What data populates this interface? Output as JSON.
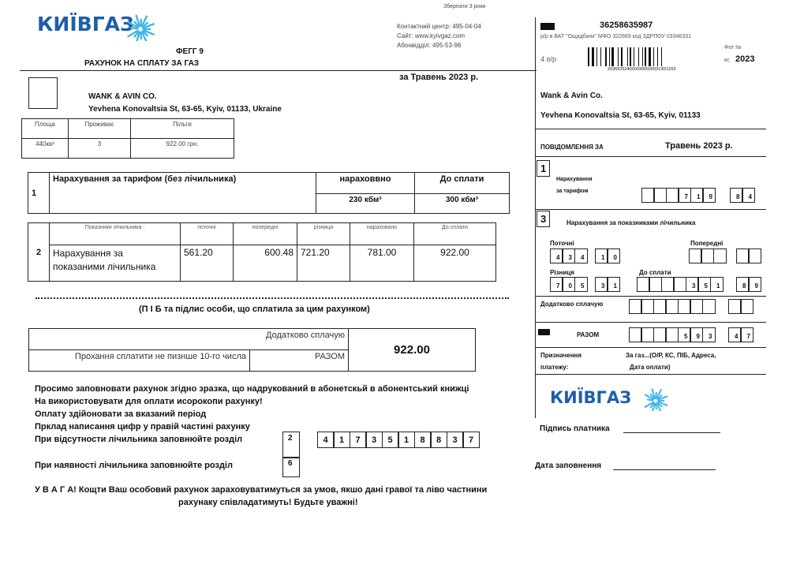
{
  "brand": {
    "logo": "КИЇВГАЗ",
    "color": "#1d5fa8",
    "star_color": "#41b5e8"
  },
  "header": {
    "keep_note": "Зберігати 3 роки",
    "contact": "Контактний центр:  495-04-04",
    "site": "Сайт:  www.kyivgaz.com",
    "subscriber_dept": "Абонвідділ:  495-53-96",
    "form_code": "ФЕГГ 9",
    "title": "РАХУНОК НА СПЛАТУ ЗА ГАЗ",
    "period": "за   Травень  2023 р."
  },
  "customer": {
    "name": "WANK & AVIN CO.",
    "address": "Yevhena Konovaltsia St, 63-65, Kyiv, 01133, Ukraine"
  },
  "info_table": {
    "headers": [
      "Площа",
      "Проживає",
      "Пільги"
    ],
    "values": [
      "440кв³",
      "3",
      "922.00 грн."
    ]
  },
  "section1": {
    "num": "1",
    "label": "Нарахування за тарифом (без лічильника)",
    "col1": "нараховвно",
    "col2": "До сплати",
    "val1": "230 кбм³",
    "val2": "300 кбм³"
  },
  "section2": {
    "num": "2",
    "headers": [
      "Показники лічильника :",
      "поточні",
      "попередні",
      "різниця",
      "нараховано",
      "До сплати"
    ],
    "row_label": "Нарахування за показаними лічильника",
    "values": [
      "561.20",
      "600.48",
      "721.20",
      "781.00",
      "922.00"
    ]
  },
  "signature_caption": "(П І Б та підлис особи, що сплатила за цим рахунком)",
  "totals": {
    "extra_label": "Додатково сплачую",
    "deadline": "Прохання сплатити не пизнше 10-го числа",
    "total_label": "РАЗОМ",
    "amount": "922.00"
  },
  "instructions": [
    "Просимо заповновати рахунок згідно зразка, що надрукований в абонетскьй в абонентський книжці",
    "На використовувати для оплати исорокопи рахунку!",
    "Оплату здійоновати за вказаний період",
    "Прклад написання цифр у правій частині рахунку",
    "При відсутности лічильника заповнюйте розділ",
    "При наявності лічильника заповнюйте розділ"
  ],
  "example": {
    "sec_no_meter": "2",
    "sec_meter": "6",
    "digits": [
      "4",
      "1",
      "7",
      "3",
      "5",
      "1",
      "8",
      "8",
      "3",
      "7"
    ]
  },
  "warning": [
    "У В А Г А! Кощти Ваш особовий рахунок зараховуватимуться за умов, якшо дані гравої та ліво частнини",
    "рахунаку співладатимуть! Будьте уважні!"
  ],
  "stub": {
    "account": "36258635987",
    "bank": "р/р  в  ВАТ \"Ощадбанк\" МФО 322669  код  ЗДРПОУ 03346331",
    "op": "4 о/р",
    "barcode_number": "20365252400003000260313D1253",
    "photo_no": "Фот   №",
    "kc": "кс",
    "year": "2023",
    "name": "Wank  & Avin  Co.",
    "address": "Yevhena Konovaltsia  St, 63-65, Kyiv, 01133",
    "notice": "ПОВІДОМЛЕННЯ   ЗА",
    "period": "Травень  2023 р.",
    "s1_num": "1",
    "s1_label1": "Нарахування",
    "s1_label2": "за тарифом",
    "s1_int": [
      "",
      "",
      "",
      "7",
      "1",
      "9"
    ],
    "s1_dec": [
      "8",
      "4"
    ],
    "s3_num": "3",
    "s3_label": "Нарахування за показниками лічильника",
    "current_label": "Поточні",
    "current_int": [
      "4",
      "3",
      "4"
    ],
    "current_dec": [
      "1",
      "0"
    ],
    "previous_label": "Попередні",
    "previous_int": [
      "",
      "",
      ""
    ],
    "previous_dec": [
      "",
      ""
    ],
    "diff_label": "Різниця",
    "diff_int": [
      "7",
      "0",
      "5"
    ],
    "diff_dec": [
      "3",
      "1"
    ],
    "due_label": "До  сплати",
    "due_int": [
      "",
      "",
      "",
      "",
      "3",
      "5",
      "1"
    ],
    "due_dec": [
      "8",
      "9"
    ],
    "extra_label": "Додатково  сплачую",
    "extra_int": [
      "",
      "",
      "",
      "",
      "",
      "",
      ""
    ],
    "extra_dec": [
      "",
      ""
    ],
    "total_label": "РАЗОМ",
    "total_int": [
      "",
      "",
      "",
      "",
      "5",
      "9",
      "3"
    ],
    "total_dec": [
      "4",
      "7"
    ],
    "purpose_label1": "Призначення",
    "purpose_label2": "платежу:",
    "purpose1": "За газ...(О/Р, КС, ПІБ, Адреса,",
    "purpose2": "Дата оплати)",
    "payer_signature": "Підпись  платника",
    "fill_date": "Дата заповнення"
  }
}
